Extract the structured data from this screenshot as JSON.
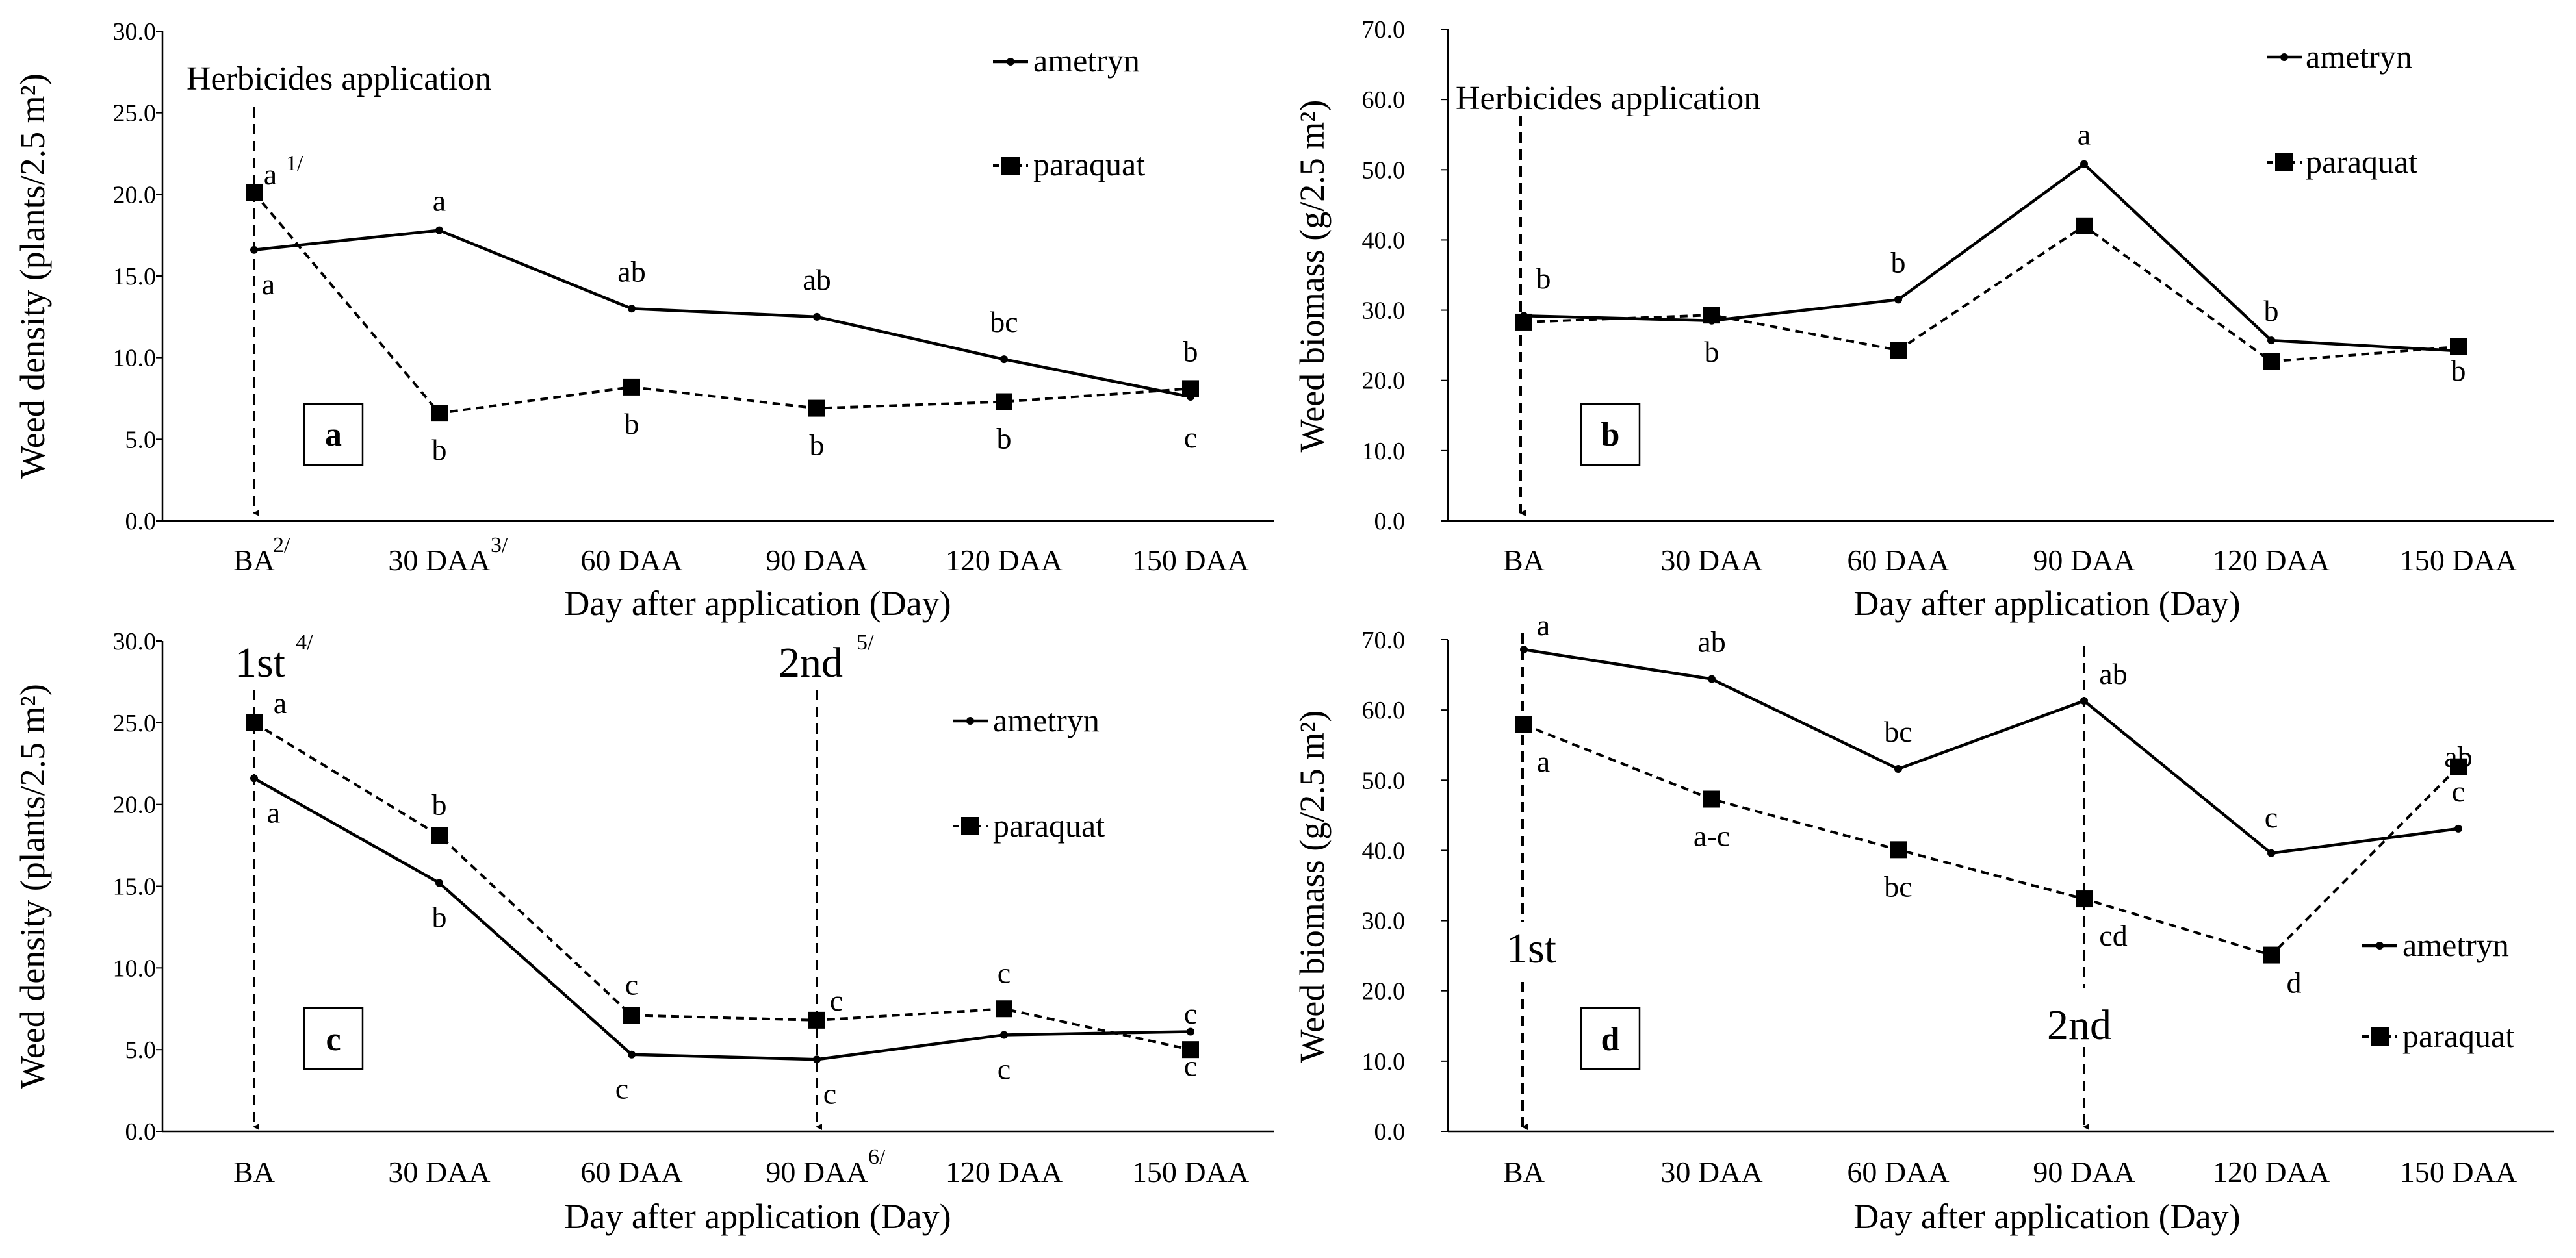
{
  "chart_data": [
    {
      "type": "line",
      "panel": "a",
      "categories": [
        "BA",
        "30 DAA",
        "60 DAA",
        "90 DAA",
        "120 DAA",
        "150 DAA"
      ],
      "category_superscripts": [
        "2/",
        "3/",
        "",
        "",
        "",
        ""
      ],
      "xlabel": "Day after application (Day)",
      "ylabel": "Weed density (plants/2.5 m²)",
      "ylim": [
        0,
        30
      ],
      "yticks": [
        "0.0",
        "5.0",
        "10.0",
        "15.0",
        "20.0",
        "25.0",
        "30.0"
      ],
      "series": [
        {
          "name": "ametryn",
          "values": [
            16.6,
            17.8,
            13.0,
            12.5,
            9.9,
            7.6
          ],
          "letters": [
            "a",
            "a",
            "ab",
            "ab",
            "bc",
            "c"
          ]
        },
        {
          "name": "paraquat",
          "values": [
            20.1,
            6.6,
            8.2,
            6.9,
            7.3,
            8.1
          ],
          "letters": [
            "a",
            "b",
            "b",
            "b",
            "b",
            "b"
          ]
        }
      ],
      "annotations": [
        {
          "text": "Herbicides application",
          "at": "BA"
        },
        {
          "text": "1/",
          "at": "BA"
        }
      ]
    },
    {
      "type": "line",
      "panel": "b",
      "categories": [
        "BA",
        "30 DAA",
        "60 DAA",
        "90 DAA",
        "120 DAA",
        "150 DAA"
      ],
      "xlabel": "Day after application (Day)",
      "ylabel": "Weed biomass (g/2.5 m²)",
      "ylim": [
        0,
        70
      ],
      "yticks": [
        "0.0",
        "10.0",
        "20.0",
        "30.0",
        "40.0",
        "50.0",
        "60.0",
        "70.0"
      ],
      "series": [
        {
          "name": "ametryn",
          "values": [
            29.2,
            28.5,
            31.5,
            50.8,
            25.7,
            24.2
          ],
          "letters": [
            "b",
            "",
            "b",
            "a",
            "b",
            ""
          ]
        },
        {
          "name": "paraquat",
          "values": [
            28.3,
            29.3,
            24.3,
            42.0,
            22.7,
            24.8
          ],
          "letters": [
            "",
            "b",
            "",
            "",
            "",
            "b"
          ]
        }
      ],
      "annotations": [
        {
          "text": "Herbicides application",
          "at": "BA"
        }
      ]
    },
    {
      "type": "line",
      "panel": "c",
      "categories": [
        "BA",
        "30 DAA",
        "60 DAA",
        "90 DAA",
        "120 DAA",
        "150 DAA"
      ],
      "category_superscripts": [
        "",
        "",
        "",
        "6/",
        "",
        ""
      ],
      "xlabel": "Day after application (Day)",
      "ylabel": "Weed density (plants/2.5 m²)",
      "ylim": [
        0,
        30
      ],
      "yticks": [
        "0.0",
        "5.0",
        "10.0",
        "15.0",
        "20.0",
        "25.0",
        "30.0"
      ],
      "series": [
        {
          "name": "ametryn",
          "values": [
            21.6,
            15.2,
            4.7,
            4.4,
            5.9,
            6.1
          ],
          "letters": [
            "a",
            "b",
            "c",
            "c",
            "c",
            "c"
          ]
        },
        {
          "name": "paraquat",
          "values": [
            25.0,
            18.1,
            7.1,
            6.8,
            7.5,
            5.0
          ],
          "letters": [
            "a",
            "b",
            "c",
            "c",
            "c",
            "c"
          ]
        }
      ],
      "annotations": [
        {
          "text": "1st",
          "sup": "4/",
          "at": "BA"
        },
        {
          "text": "2nd",
          "sup": "5/",
          "at": "90 DAA"
        }
      ]
    },
    {
      "type": "line",
      "panel": "d",
      "categories": [
        "BA",
        "30 DAA",
        "60 DAA",
        "90 DAA",
        "120 DAA",
        "150 DAA"
      ],
      "xlabel": "Day after application (Day)",
      "ylabel": "Weed biomass (g/2.5 m²)",
      "ylim": [
        0,
        70
      ],
      "yticks": [
        "0.0",
        "10.0",
        "20.0",
        "30.0",
        "40.0",
        "50.0",
        "60.0",
        "70.0"
      ],
      "series": [
        {
          "name": "ametryn",
          "values": [
            68.6,
            64.4,
            51.6,
            61.3,
            39.6,
            43.1
          ],
          "letters": [
            "a",
            "ab",
            "bc",
            "ab",
            "c",
            "c"
          ]
        },
        {
          "name": "paraquat",
          "values": [
            57.9,
            47.3,
            40.1,
            33.1,
            25.1,
            51.9
          ],
          "letters": [
            "a",
            "a-c",
            "bc",
            "cd",
            "d",
            "ab"
          ]
        }
      ],
      "annotations": [
        {
          "text": "1st",
          "at": "BA"
        },
        {
          "text": "2nd",
          "at": "90 DAA"
        }
      ]
    }
  ]
}
